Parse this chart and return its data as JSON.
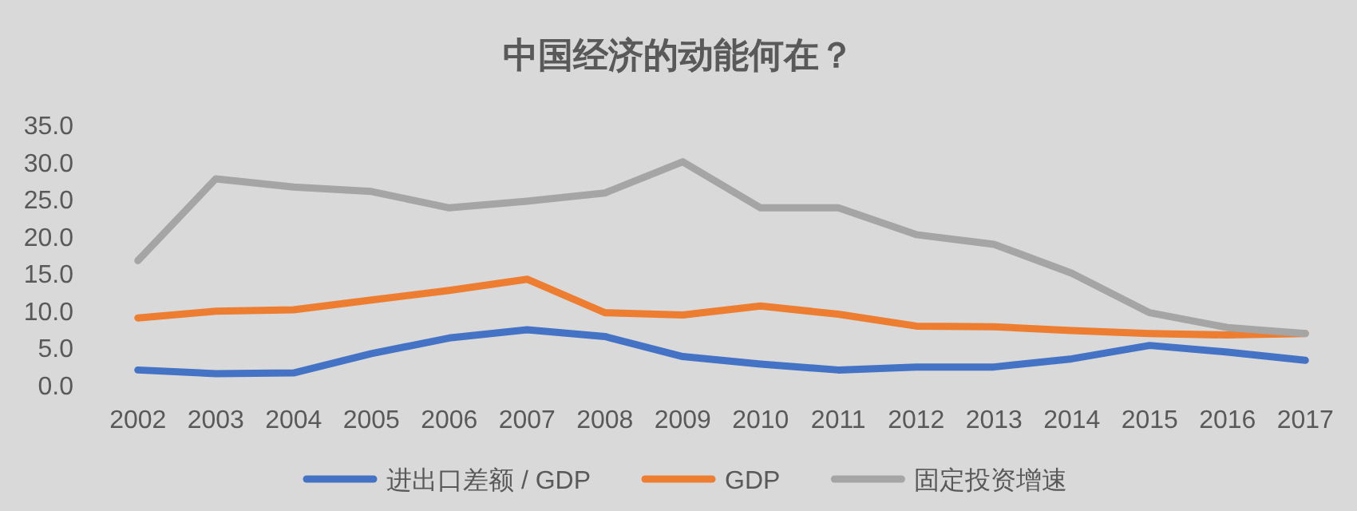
{
  "chart_data": {
    "type": "line",
    "title": "中国经济的动能何在？",
    "categories": [
      "2002",
      "2003",
      "2004",
      "2005",
      "2006",
      "2007",
      "2008",
      "2009",
      "2010",
      "2011",
      "2012",
      "2013",
      "2014",
      "2015",
      "2016",
      "2017"
    ],
    "series": [
      {
        "name": "进出口差额 / GDP",
        "color": "#4472c4",
        "values": [
          2.0,
          1.5,
          1.6,
          4.2,
          6.3,
          7.4,
          6.5,
          3.8,
          2.8,
          2.0,
          2.4,
          2.4,
          3.5,
          5.3,
          4.4,
          3.3
        ]
      },
      {
        "name": "GDP",
        "color": "#ed7d31",
        "values": [
          9.0,
          9.9,
          10.1,
          11.4,
          12.7,
          14.2,
          9.7,
          9.4,
          10.6,
          9.5,
          7.9,
          7.8,
          7.3,
          6.9,
          6.7,
          6.9
        ]
      },
      {
        "name": "固定投资增速",
        "color": "#a5a5a5",
        "values": [
          16.7,
          27.7,
          26.6,
          26.0,
          23.8,
          24.7,
          25.8,
          30.0,
          23.8,
          23.8,
          20.2,
          18.9,
          15.0,
          9.7,
          7.7,
          6.9
        ]
      }
    ],
    "ylim": [
      0,
      35
    ],
    "yticks": [
      {
        "value": 0,
        "label": "0.0"
      },
      {
        "value": 5,
        "label": "5.0"
      },
      {
        "value": 10,
        "label": "10.0"
      },
      {
        "value": 15,
        "label": "15.0"
      },
      {
        "value": 20,
        "label": "20.0"
      },
      {
        "value": 25,
        "label": "25.0"
      },
      {
        "value": 30,
        "label": "30.0"
      },
      {
        "value": 35,
        "label": "35.0"
      }
    ],
    "grid": false,
    "legend": "bottom",
    "marker": "none",
    "line_style": "solid"
  }
}
